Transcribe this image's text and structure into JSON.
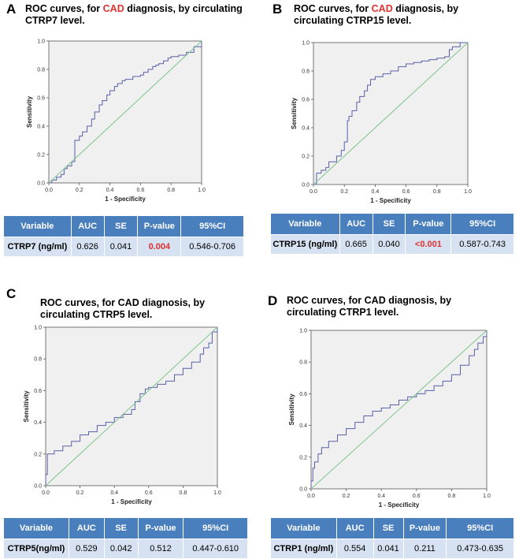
{
  "panels": [
    {
      "letter": "A",
      "title_pre": "ROC curves, for ",
      "title_cad": "CAD",
      "title_post": " diagnosis, by circulating",
      "title_line2": "CTRP7 level.",
      "table": {
        "headers": [
          "Variable",
          "AUC",
          "SE",
          "P-value",
          "95%CI"
        ],
        "row": [
          "CTRP7 (ng/ml)",
          "0.626",
          "0.041",
          "0.004",
          "0.546-0.706"
        ],
        "p_significant": true
      }
    },
    {
      "letter": "B",
      "title_pre": "ROC curves, for ",
      "title_cad": "CAD",
      "title_post": " diagnosis, by",
      "title_line2": "circulating CTRP15 level.",
      "table": {
        "headers": [
          "Variable",
          "AUC",
          "SE",
          "P-value",
          "95%CI"
        ],
        "row": [
          "CTRP15 (ng/ml)",
          "0.665",
          "0.040",
          "<0.001",
          "0.587-0.743"
        ],
        "p_significant": true
      }
    },
    {
      "letter": "C",
      "title_pre": "ROC curves, for CAD diagnosis, by",
      "title_cad": "",
      "title_post": "",
      "title_line2": "circulating CTRP5 level.",
      "table": {
        "headers": [
          "Variable",
          "AUC",
          "SE",
          "P-value",
          "95%CI"
        ],
        "row": [
          "CTRP5(ng/ml)",
          "0.529",
          "0.042",
          "0.512",
          "0.447-0.610"
        ],
        "p_significant": false
      }
    },
    {
      "letter": "D",
      "title_pre": "ROC curves, for CAD diagnosis, by",
      "title_cad": "",
      "title_post": "",
      "title_line2": "circulating CTRP1 level.",
      "table": {
        "headers": [
          "Variable",
          "AUC",
          "SE",
          "P-value",
          "95%CI"
        ],
        "row": [
          "CTRP1 (ng/ml)",
          "0.554",
          "0.041",
          "0.211",
          "0.473-0.635"
        ],
        "p_significant": false
      }
    }
  ],
  "colors": {
    "curve": "#5a5fa8",
    "reference": "#7cc48a",
    "plot_bg": "#f0f0f0",
    "header": "#4a7fbd",
    "cell": "#d6e2f1",
    "highlight": "#e03030"
  },
  "chart_data": [
    {
      "type": "line",
      "panel": "A",
      "xlabel": "1 - Specificity",
      "ylabel": "Sensitivity",
      "xlim": [
        0,
        1
      ],
      "ylim": [
        0,
        1
      ],
      "ticks": [
        "0.0",
        "0.2",
        "0.4",
        "0.6",
        "0.8",
        "1.0"
      ],
      "series": [
        {
          "name": "CTRP7 ROC",
          "x": [
            0,
            0.02,
            0.05,
            0.08,
            0.1,
            0.12,
            0.15,
            0.17,
            0.17,
            0.2,
            0.22,
            0.25,
            0.28,
            0.3,
            0.33,
            0.35,
            0.38,
            0.4,
            0.43,
            0.45,
            0.48,
            0.5,
            0.55,
            0.6,
            0.62,
            0.65,
            0.68,
            0.7,
            0.72,
            0.75,
            0.78,
            0.8,
            0.85,
            0.9,
            0.95,
            1
          ],
          "y": [
            0,
            0.02,
            0.04,
            0.06,
            0.1,
            0.12,
            0.15,
            0.17,
            0.3,
            0.33,
            0.36,
            0.4,
            0.45,
            0.5,
            0.55,
            0.58,
            0.62,
            0.65,
            0.68,
            0.7,
            0.72,
            0.73,
            0.75,
            0.76,
            0.78,
            0.8,
            0.82,
            0.83,
            0.84,
            0.86,
            0.88,
            0.89,
            0.9,
            0.92,
            0.96,
            1
          ]
        },
        {
          "name": "Reference",
          "x": [
            0,
            1
          ],
          "y": [
            0,
            1
          ]
        }
      ]
    },
    {
      "type": "line",
      "panel": "B",
      "xlabel": "1 - Specificity",
      "ylabel": "Sensitivity",
      "xlim": [
        0,
        1
      ],
      "ylim": [
        0,
        1
      ],
      "ticks": [
        "0.0",
        "0.2",
        "0.4",
        "0.6",
        "0.8",
        "1.0"
      ],
      "series": [
        {
          "name": "CTRP15 ROC",
          "x": [
            0,
            0.02,
            0.05,
            0.08,
            0.1,
            0.15,
            0.18,
            0.2,
            0.22,
            0.23,
            0.25,
            0.28,
            0.3,
            0.33,
            0.35,
            0.37,
            0.4,
            0.45,
            0.5,
            0.55,
            0.6,
            0.65,
            0.7,
            0.75,
            0.8,
            0.85,
            0.88,
            0.9,
            0.95,
            1
          ],
          "y": [
            0,
            0.08,
            0.1,
            0.12,
            0.16,
            0.2,
            0.24,
            0.3,
            0.45,
            0.48,
            0.52,
            0.58,
            0.62,
            0.66,
            0.7,
            0.74,
            0.76,
            0.78,
            0.8,
            0.83,
            0.85,
            0.86,
            0.87,
            0.88,
            0.89,
            0.9,
            0.95,
            0.97,
            1,
            1
          ]
        },
        {
          "name": "Reference",
          "x": [
            0,
            1
          ],
          "y": [
            0,
            1
          ]
        }
      ]
    },
    {
      "type": "line",
      "panel": "C",
      "xlabel": "1 - Specificity",
      "ylabel": "Sensitivity",
      "xlim": [
        0,
        1
      ],
      "ylim": [
        0,
        1
      ],
      "ticks": [
        "0.0",
        "0.2",
        "0.4",
        "0.6",
        "0.8",
        "1.0"
      ],
      "series": [
        {
          "name": "CTRP5 ROC",
          "x": [
            0,
            0,
            0.01,
            0.01,
            0.05,
            0.1,
            0.15,
            0.2,
            0.25,
            0.3,
            0.35,
            0.4,
            0.45,
            0.5,
            0.52,
            0.55,
            0.58,
            0.6,
            0.65,
            0.7,
            0.75,
            0.8,
            0.85,
            0.9,
            0.92,
            0.95,
            0.97,
            1
          ],
          "y": [
            0,
            0.07,
            0.1,
            0.2,
            0.22,
            0.25,
            0.28,
            0.32,
            0.34,
            0.38,
            0.4,
            0.43,
            0.45,
            0.48,
            0.53,
            0.58,
            0.61,
            0.62,
            0.64,
            0.66,
            0.7,
            0.74,
            0.78,
            0.83,
            0.87,
            0.9,
            0.97,
            1
          ]
        },
        {
          "name": "Reference",
          "x": [
            0,
            1
          ],
          "y": [
            0,
            1
          ]
        }
      ]
    },
    {
      "type": "line",
      "panel": "D",
      "xlabel": "1 - Specificity",
      "ylabel": "Sensitivity",
      "xlim": [
        0,
        1
      ],
      "ylim": [
        0,
        1
      ],
      "ticks": [
        "0.0",
        "0.2",
        "0.4",
        "0.6",
        "0.8",
        "1.0"
      ],
      "series": [
        {
          "name": "CTRP1 ROC",
          "x": [
            0,
            0,
            0.01,
            0.02,
            0.04,
            0.06,
            0.1,
            0.15,
            0.2,
            0.25,
            0.3,
            0.35,
            0.4,
            0.45,
            0.5,
            0.55,
            0.6,
            0.65,
            0.7,
            0.75,
            0.8,
            0.85,
            0.9,
            0.93,
            0.95,
            0.98,
            1
          ],
          "y": [
            0,
            0.05,
            0.13,
            0.17,
            0.22,
            0.26,
            0.3,
            0.34,
            0.38,
            0.42,
            0.46,
            0.49,
            0.51,
            0.53,
            0.56,
            0.58,
            0.6,
            0.62,
            0.65,
            0.68,
            0.72,
            0.78,
            0.84,
            0.88,
            0.92,
            0.96,
            1
          ]
        },
        {
          "name": "Reference",
          "x": [
            0,
            1
          ],
          "y": [
            0,
            1
          ]
        }
      ]
    }
  ]
}
